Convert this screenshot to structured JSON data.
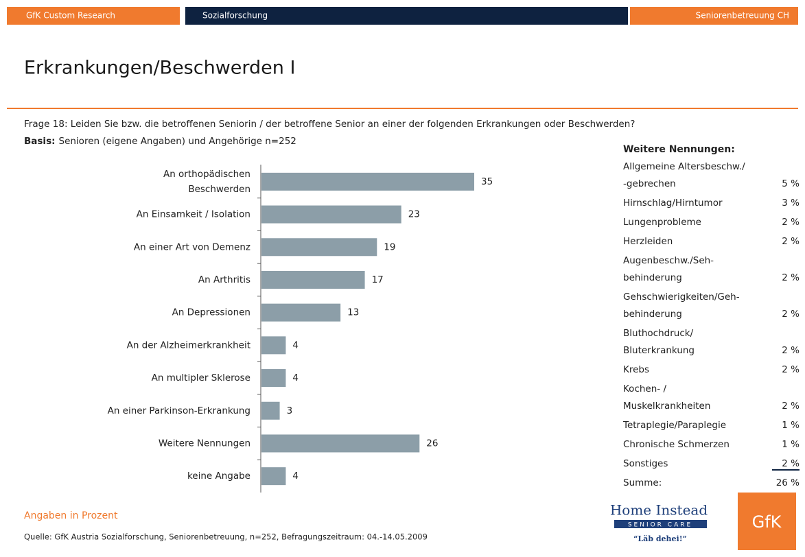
{
  "header": {
    "left": "GfK Custom Research",
    "center": "Sozialforschung",
    "right": "Seniorenbetreuung CH"
  },
  "title": "Erkrankungen/Beschwerden I",
  "question": "Frage 18: Leiden Sie bzw. die betroffenen Seniorin / der betroffene Senior an einer der folgenden Erkrankungen oder Beschwerden?",
  "basis_label": "Basis:",
  "basis": "Senioren (eigene Angaben) und Angehörige n=252",
  "chart_data": {
    "type": "bar",
    "orientation": "horizontal",
    "categories": [
      [
        "An orthopädischen",
        "Beschwerden"
      ],
      "An Einsamkeit / Isolation",
      "An einer Art von Demenz",
      "An Arthritis",
      "An Depressionen",
      "An der Alzheimerkrankheit",
      "An multipler Sklerose",
      "An einer Parkinson-Erkrankung",
      "Weitere Nennungen",
      "keine Angabe"
    ],
    "values": [
      35,
      23,
      19,
      17,
      13,
      4,
      4,
      3,
      26,
      4
    ],
    "color": "#8c9ea8"
  },
  "sidebar": {
    "title": "Weitere Nennungen:",
    "items": [
      {
        "label": [
          "Allgemeine Altersbeschw./",
          "-gebrechen"
        ],
        "value": "5 %"
      },
      {
        "label": [
          "Hirnschlag/Hirntumor"
        ],
        "value": "3 %"
      },
      {
        "label": [
          "Lungenprobleme"
        ],
        "value": "2 %"
      },
      {
        "label": [
          "Herzleiden"
        ],
        "value": "2 %"
      },
      {
        "label": [
          "Augenbeschw./Seh-",
          "behinderung"
        ],
        "value": "2 %"
      },
      {
        "label": [
          "Gehschwierigkeiten/Geh-",
          "behinderung"
        ],
        "value": "2 %"
      },
      {
        "label": [
          "Bluthochdruck/",
          "Bluterkrankung"
        ],
        "value": "2 %"
      },
      {
        "label": [
          "Krebs"
        ],
        "value": "2 %"
      },
      {
        "label": [
          "Kochen- /",
          "Muskelkrankheiten"
        ],
        "value": "2 %"
      },
      {
        "label": [
          "Tetraplegie/Paraplegie"
        ],
        "value": "1 %"
      },
      {
        "label": [
          "Chronische Schmerzen"
        ],
        "value": "1 %"
      },
      {
        "label": [
          "Sonstiges"
        ],
        "value": "2 %",
        "underline": true
      },
      {
        "label": [
          "Summe:"
        ],
        "value": "26 %"
      }
    ]
  },
  "note": "Angaben in Prozent",
  "source": "Quelle: GfK Austria Sozialforschung, Seniorenbetreuung, n=252, Befragungszeitraum: 04.-14.05.2009",
  "logos": {
    "home_instead": "Home Instead",
    "senior_care": "SENIOR CARE",
    "slogan": "“Läb dehei!”",
    "gfk": "GfK"
  }
}
